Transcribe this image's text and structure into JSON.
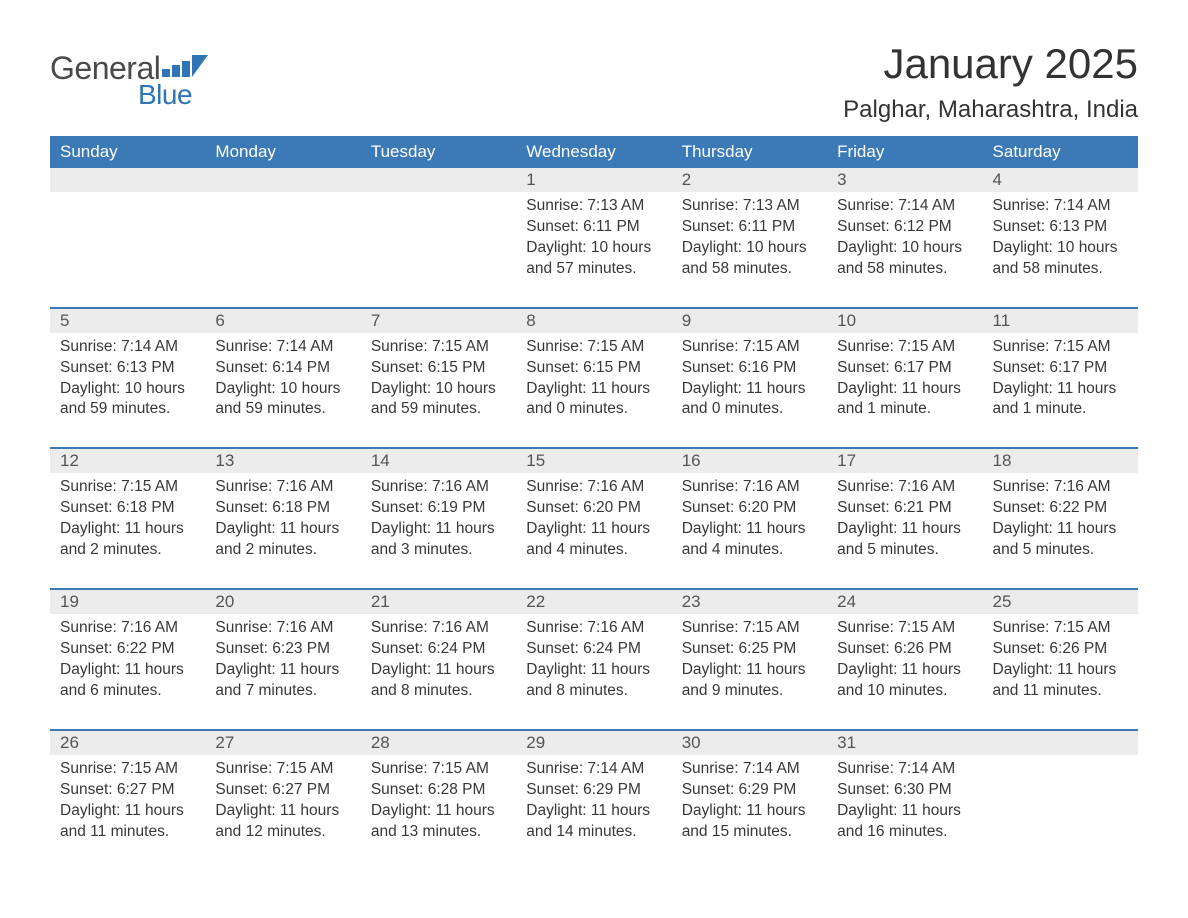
{
  "brand": {
    "text_general": "General",
    "text_blue": "Blue",
    "accent_color": "#2f74b5"
  },
  "title": "January 2025",
  "location": "Palghar, Maharashtra, India",
  "colors": {
    "header_bg": "#3b79b7",
    "header_text": "#ffffff",
    "daynum_bg": "#ececec",
    "daynum_text": "#555555",
    "body_text": "#383838",
    "page_bg": "#ffffff",
    "separator": "#3b79b7"
  },
  "typography": {
    "title_fontsize": 42,
    "location_fontsize": 24,
    "header_fontsize": 17,
    "daynum_fontsize": 17,
    "body_fontsize": 15.5,
    "logo_fontsize": 32
  },
  "day_headers": [
    "Sunday",
    "Monday",
    "Tuesday",
    "Wednesday",
    "Thursday",
    "Friday",
    "Saturday"
  ],
  "weeks": [
    {
      "daynums": [
        "",
        "",
        "",
        "1",
        "2",
        "3",
        "4"
      ],
      "cells": [
        {
          "sunrise": "",
          "sunset": "",
          "daylight": ""
        },
        {
          "sunrise": "",
          "sunset": "",
          "daylight": ""
        },
        {
          "sunrise": "",
          "sunset": "",
          "daylight": ""
        },
        {
          "sunrise": "Sunrise: 7:13 AM",
          "sunset": "Sunset: 6:11 PM",
          "daylight": "Daylight: 10 hours and 57 minutes."
        },
        {
          "sunrise": "Sunrise: 7:13 AM",
          "sunset": "Sunset: 6:11 PM",
          "daylight": "Daylight: 10 hours and 58 minutes."
        },
        {
          "sunrise": "Sunrise: 7:14 AM",
          "sunset": "Sunset: 6:12 PM",
          "daylight": "Daylight: 10 hours and 58 minutes."
        },
        {
          "sunrise": "Sunrise: 7:14 AM",
          "sunset": "Sunset: 6:13 PM",
          "daylight": "Daylight: 10 hours and 58 minutes."
        }
      ]
    },
    {
      "daynums": [
        "5",
        "6",
        "7",
        "8",
        "9",
        "10",
        "11"
      ],
      "cells": [
        {
          "sunrise": "Sunrise: 7:14 AM",
          "sunset": "Sunset: 6:13 PM",
          "daylight": "Daylight: 10 hours and 59 minutes."
        },
        {
          "sunrise": "Sunrise: 7:14 AM",
          "sunset": "Sunset: 6:14 PM",
          "daylight": "Daylight: 10 hours and 59 minutes."
        },
        {
          "sunrise": "Sunrise: 7:15 AM",
          "sunset": "Sunset: 6:15 PM",
          "daylight": "Daylight: 10 hours and 59 minutes."
        },
        {
          "sunrise": "Sunrise: 7:15 AM",
          "sunset": "Sunset: 6:15 PM",
          "daylight": "Daylight: 11 hours and 0 minutes."
        },
        {
          "sunrise": "Sunrise: 7:15 AM",
          "sunset": "Sunset: 6:16 PM",
          "daylight": "Daylight: 11 hours and 0 minutes."
        },
        {
          "sunrise": "Sunrise: 7:15 AM",
          "sunset": "Sunset: 6:17 PM",
          "daylight": "Daylight: 11 hours and 1 minute."
        },
        {
          "sunrise": "Sunrise: 7:15 AM",
          "sunset": "Sunset: 6:17 PM",
          "daylight": "Daylight: 11 hours and 1 minute."
        }
      ]
    },
    {
      "daynums": [
        "12",
        "13",
        "14",
        "15",
        "16",
        "17",
        "18"
      ],
      "cells": [
        {
          "sunrise": "Sunrise: 7:15 AM",
          "sunset": "Sunset: 6:18 PM",
          "daylight": "Daylight: 11 hours and 2 minutes."
        },
        {
          "sunrise": "Sunrise: 7:16 AM",
          "sunset": "Sunset: 6:18 PM",
          "daylight": "Daylight: 11 hours and 2 minutes."
        },
        {
          "sunrise": "Sunrise: 7:16 AM",
          "sunset": "Sunset: 6:19 PM",
          "daylight": "Daylight: 11 hours and 3 minutes."
        },
        {
          "sunrise": "Sunrise: 7:16 AM",
          "sunset": "Sunset: 6:20 PM",
          "daylight": "Daylight: 11 hours and 4 minutes."
        },
        {
          "sunrise": "Sunrise: 7:16 AM",
          "sunset": "Sunset: 6:20 PM",
          "daylight": "Daylight: 11 hours and 4 minutes."
        },
        {
          "sunrise": "Sunrise: 7:16 AM",
          "sunset": "Sunset: 6:21 PM",
          "daylight": "Daylight: 11 hours and 5 minutes."
        },
        {
          "sunrise": "Sunrise: 7:16 AM",
          "sunset": "Sunset: 6:22 PM",
          "daylight": "Daylight: 11 hours and 5 minutes."
        }
      ]
    },
    {
      "daynums": [
        "19",
        "20",
        "21",
        "22",
        "23",
        "24",
        "25"
      ],
      "cells": [
        {
          "sunrise": "Sunrise: 7:16 AM",
          "sunset": "Sunset: 6:22 PM",
          "daylight": "Daylight: 11 hours and 6 minutes."
        },
        {
          "sunrise": "Sunrise: 7:16 AM",
          "sunset": "Sunset: 6:23 PM",
          "daylight": "Daylight: 11 hours and 7 minutes."
        },
        {
          "sunrise": "Sunrise: 7:16 AM",
          "sunset": "Sunset: 6:24 PM",
          "daylight": "Daylight: 11 hours and 8 minutes."
        },
        {
          "sunrise": "Sunrise: 7:16 AM",
          "sunset": "Sunset: 6:24 PM",
          "daylight": "Daylight: 11 hours and 8 minutes."
        },
        {
          "sunrise": "Sunrise: 7:15 AM",
          "sunset": "Sunset: 6:25 PM",
          "daylight": "Daylight: 11 hours and 9 minutes."
        },
        {
          "sunrise": "Sunrise: 7:15 AM",
          "sunset": "Sunset: 6:26 PM",
          "daylight": "Daylight: 11 hours and 10 minutes."
        },
        {
          "sunrise": "Sunrise: 7:15 AM",
          "sunset": "Sunset: 6:26 PM",
          "daylight": "Daylight: 11 hours and 11 minutes."
        }
      ]
    },
    {
      "daynums": [
        "26",
        "27",
        "28",
        "29",
        "30",
        "31",
        ""
      ],
      "cells": [
        {
          "sunrise": "Sunrise: 7:15 AM",
          "sunset": "Sunset: 6:27 PM",
          "daylight": "Daylight: 11 hours and 11 minutes."
        },
        {
          "sunrise": "Sunrise: 7:15 AM",
          "sunset": "Sunset: 6:27 PM",
          "daylight": "Daylight: 11 hours and 12 minutes."
        },
        {
          "sunrise": "Sunrise: 7:15 AM",
          "sunset": "Sunset: 6:28 PM",
          "daylight": "Daylight: 11 hours and 13 minutes."
        },
        {
          "sunrise": "Sunrise: 7:14 AM",
          "sunset": "Sunset: 6:29 PM",
          "daylight": "Daylight: 11 hours and 14 minutes."
        },
        {
          "sunrise": "Sunrise: 7:14 AM",
          "sunset": "Sunset: 6:29 PM",
          "daylight": "Daylight: 11 hours and 15 minutes."
        },
        {
          "sunrise": "Sunrise: 7:14 AM",
          "sunset": "Sunset: 6:30 PM",
          "daylight": "Daylight: 11 hours and 16 minutes."
        },
        {
          "sunrise": "",
          "sunset": "",
          "daylight": ""
        }
      ]
    }
  ]
}
